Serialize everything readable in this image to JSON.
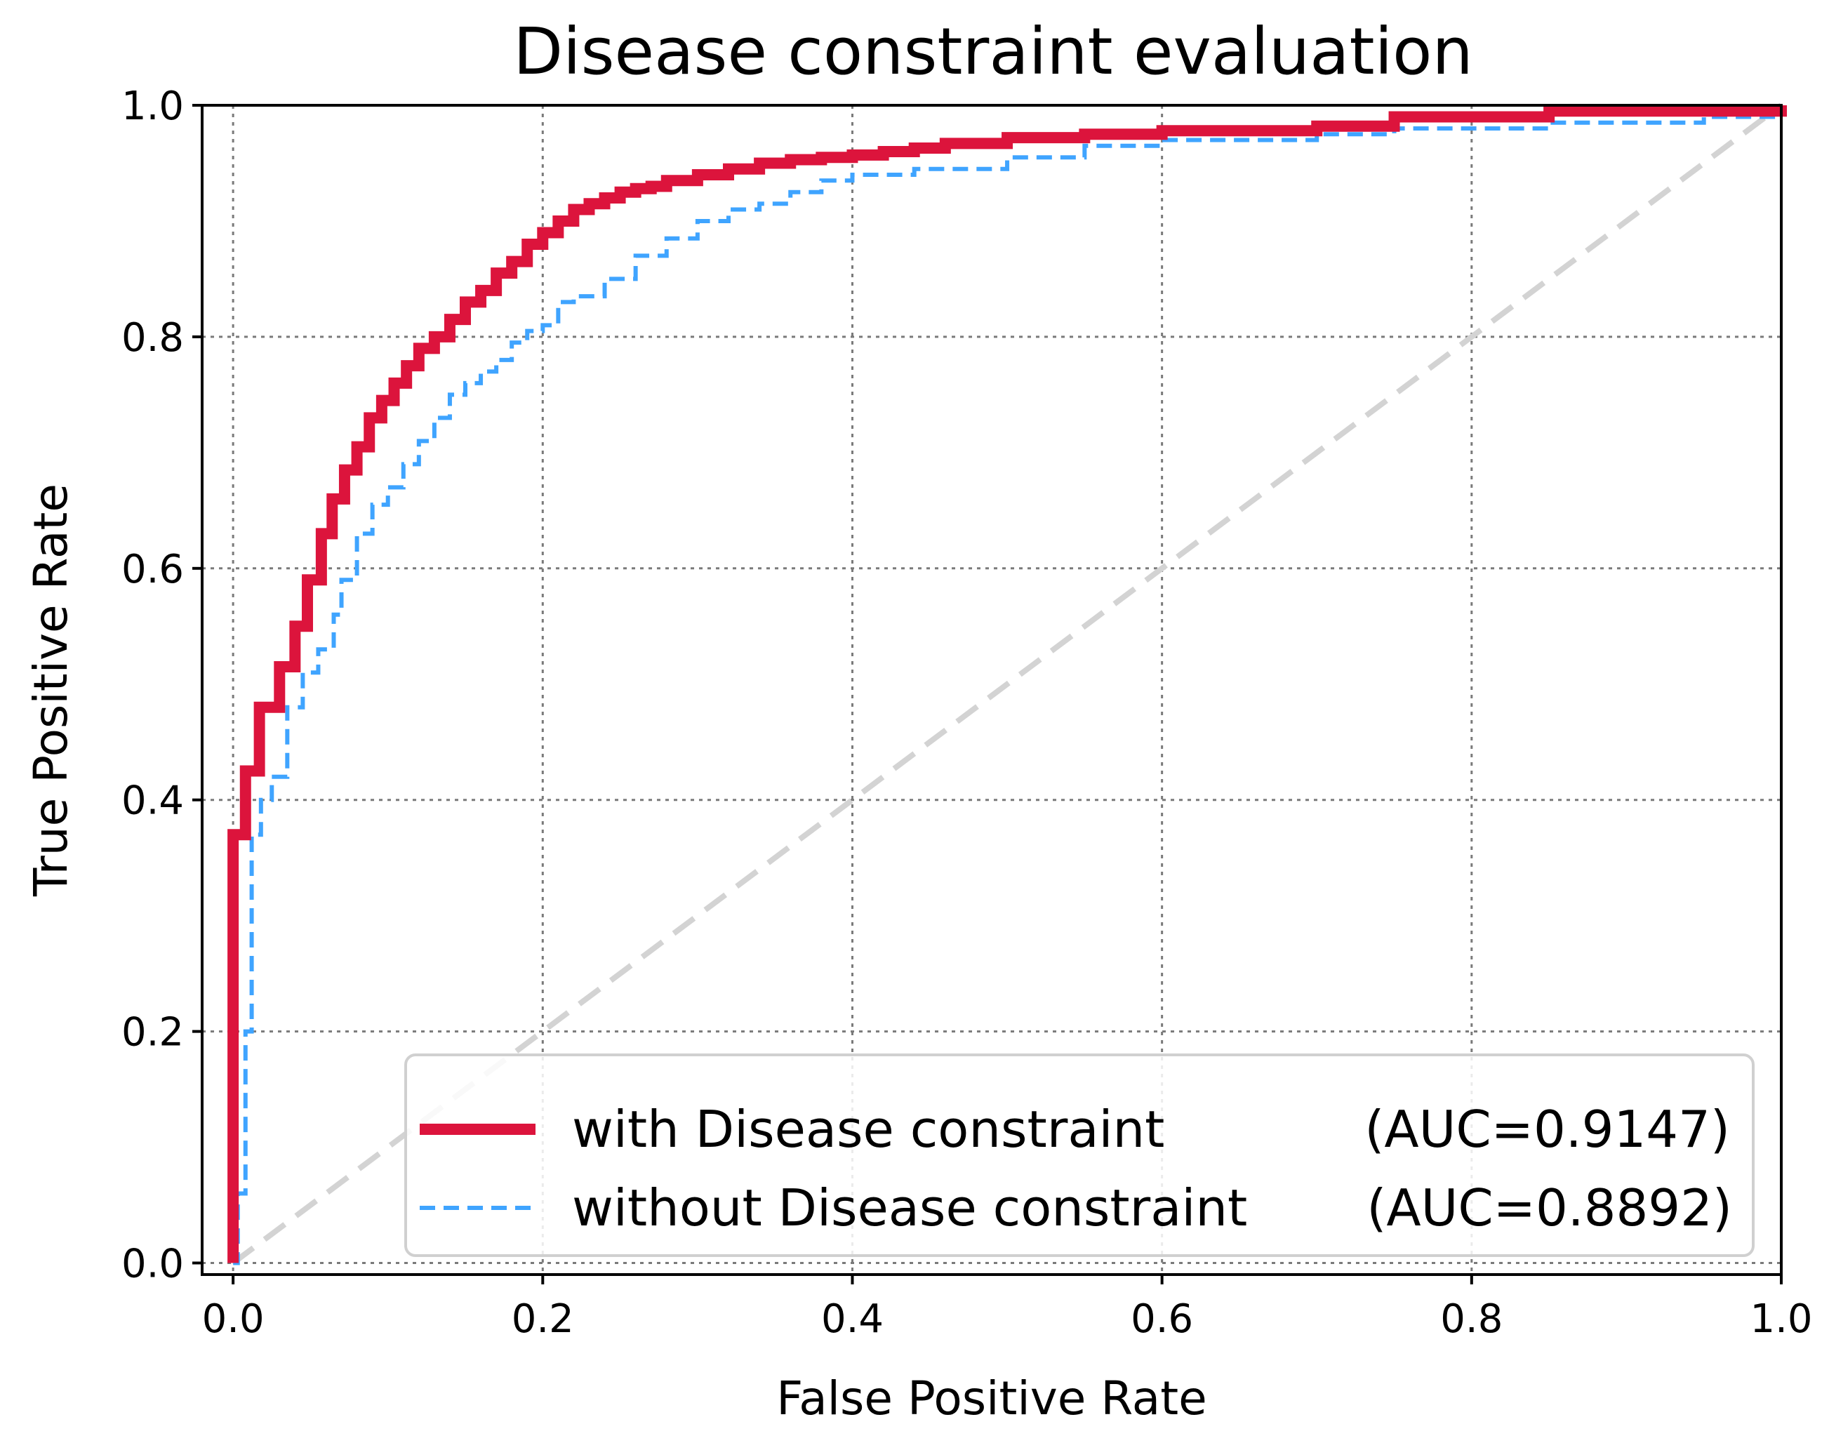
{
  "chart_data": {
    "type": "line",
    "title": "Disease constraint evaluation",
    "xlabel": "False Positive Rate",
    "ylabel": "True Positive Rate",
    "xlim": [
      -0.02,
      1.0
    ],
    "ylim": [
      -0.01,
      1.0
    ],
    "xticks": [
      "0.0",
      "0.2",
      "0.4",
      "0.6",
      "0.8",
      "1.0"
    ],
    "yticks": [
      "0.0",
      "0.2",
      "0.4",
      "0.6",
      "0.8",
      "1.0"
    ],
    "grid": true,
    "legend_position": "lower right",
    "series": [
      {
        "name": "with Disease constraint",
        "auc_label": "(AUC=0.9147)",
        "color": "#dc143c",
        "style": "solid",
        "step": true,
        "x": [
          0.0,
          0.0,
          0.008,
          0.017,
          0.03,
          0.04,
          0.048,
          0.057,
          0.064,
          0.072,
          0.08,
          0.088,
          0.096,
          0.104,
          0.112,
          0.12,
          0.13,
          0.14,
          0.15,
          0.16,
          0.17,
          0.18,
          0.19,
          0.2,
          0.21,
          0.22,
          0.23,
          0.24,
          0.25,
          0.26,
          0.27,
          0.28,
          0.3,
          0.32,
          0.34,
          0.36,
          0.38,
          0.4,
          0.42,
          0.44,
          0.46,
          0.5,
          0.55,
          0.6,
          0.7,
          0.75,
          0.85,
          1.0
        ],
        "y": [
          0.0,
          0.37,
          0.425,
          0.48,
          0.515,
          0.55,
          0.59,
          0.63,
          0.66,
          0.685,
          0.705,
          0.73,
          0.745,
          0.76,
          0.775,
          0.79,
          0.8,
          0.815,
          0.83,
          0.84,
          0.855,
          0.865,
          0.88,
          0.89,
          0.9,
          0.91,
          0.915,
          0.92,
          0.925,
          0.928,
          0.93,
          0.935,
          0.94,
          0.945,
          0.95,
          0.953,
          0.955,
          0.957,
          0.96,
          0.963,
          0.967,
          0.972,
          0.975,
          0.978,
          0.982,
          0.99,
          0.995,
          1.0
        ]
      },
      {
        "name": "without Disease constraint",
        "auc_label": "(AUC=0.8892)",
        "color": "#3fa4ff",
        "style": "dashed",
        "step": true,
        "x": [
          0.0,
          0.003,
          0.008,
          0.012,
          0.018,
          0.025,
          0.035,
          0.045,
          0.055,
          0.065,
          0.07,
          0.08,
          0.09,
          0.1,
          0.11,
          0.12,
          0.13,
          0.14,
          0.15,
          0.16,
          0.17,
          0.18,
          0.19,
          0.2,
          0.21,
          0.22,
          0.24,
          0.26,
          0.28,
          0.3,
          0.32,
          0.34,
          0.36,
          0.38,
          0.4,
          0.44,
          0.5,
          0.55,
          0.6,
          0.7,
          0.75,
          0.85,
          0.95,
          1.0
        ],
        "y": [
          0.0,
          0.06,
          0.2,
          0.37,
          0.4,
          0.42,
          0.48,
          0.51,
          0.53,
          0.56,
          0.59,
          0.63,
          0.655,
          0.67,
          0.69,
          0.71,
          0.73,
          0.75,
          0.76,
          0.77,
          0.78,
          0.795,
          0.805,
          0.81,
          0.83,
          0.835,
          0.85,
          0.87,
          0.885,
          0.9,
          0.91,
          0.915,
          0.925,
          0.935,
          0.94,
          0.945,
          0.955,
          0.965,
          0.97,
          0.975,
          0.98,
          0.985,
          0.99,
          1.0
        ]
      }
    ],
    "diagonal": {
      "color": "#d3d3d3",
      "style": "dashed"
    }
  }
}
